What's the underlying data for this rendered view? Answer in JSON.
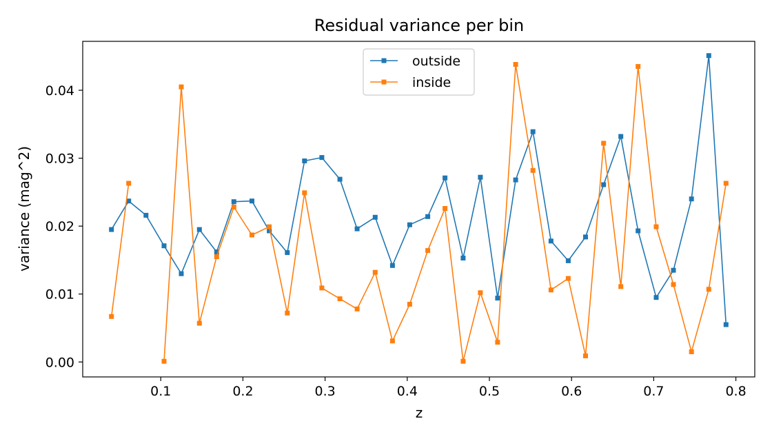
{
  "chart_data": {
    "type": "line",
    "title": "Residual variance per bin",
    "xlabel": "z",
    "ylabel": "variance (mag^2)",
    "xlim": [
      0.005,
      0.823
    ],
    "ylim": [
      -0.0022,
      0.0472
    ],
    "xticks": [
      0.1,
      0.2,
      0.3,
      0.4,
      0.5,
      0.6,
      0.7,
      0.8
    ],
    "xtick_labels": [
      "0.1",
      "0.2",
      "0.3",
      "0.4",
      "0.5",
      "0.6",
      "0.7",
      "0.8"
    ],
    "yticks": [
      0.0,
      0.01,
      0.02,
      0.03,
      0.04
    ],
    "ytick_labels": [
      "0.00",
      "0.01",
      "0.02",
      "0.03",
      "0.04"
    ],
    "grid": false,
    "legend_position": "top-center",
    "x": [
      0.04,
      0.061,
      0.082,
      0.104,
      0.125,
      0.147,
      0.168,
      0.189,
      0.211,
      0.232,
      0.254,
      0.275,
      0.296,
      0.318,
      0.339,
      0.361,
      0.382,
      0.403,
      0.425,
      0.446,
      0.468,
      0.489,
      0.51,
      0.532,
      0.553,
      0.575,
      0.596,
      0.617,
      0.639,
      0.66,
      0.681,
      0.703,
      0.724,
      0.746,
      0.767,
      0.788
    ],
    "series": [
      {
        "name": "outside",
        "color": "#1f77b4",
        "marker": "square",
        "values": [
          0.0195,
          0.0237,
          0.0216,
          0.0171,
          0.013,
          0.0195,
          0.0162,
          0.0236,
          0.0237,
          0.0193,
          0.0161,
          0.0296,
          0.0301,
          0.0269,
          0.0196,
          0.0213,
          0.0142,
          0.0202,
          0.0214,
          0.0271,
          0.0153,
          0.0272,
          0.0094,
          0.0268,
          0.0339,
          0.0178,
          0.0149,
          0.0184,
          0.0261,
          0.0332,
          0.0193,
          0.0095,
          0.0135,
          0.024,
          0.0451,
          0.0055
        ]
      },
      {
        "name": "inside",
        "color": "#ff7f0e",
        "marker": "square",
        "values": [
          0.0067,
          0.0263,
          null,
          0.0001,
          0.0405,
          0.0057,
          0.0155,
          0.0228,
          0.0187,
          0.0199,
          0.0072,
          0.0249,
          0.0109,
          0.0093,
          0.0078,
          0.0132,
          0.0031,
          0.0085,
          0.0164,
          0.0226,
          0.0001,
          0.0102,
          0.0029,
          0.0438,
          0.0282,
          0.0106,
          0.0123,
          0.0009,
          0.0322,
          0.0111,
          0.0435,
          0.0199,
          0.0114,
          0.0015,
          0.0107,
          0.0263
        ]
      }
    ]
  }
}
